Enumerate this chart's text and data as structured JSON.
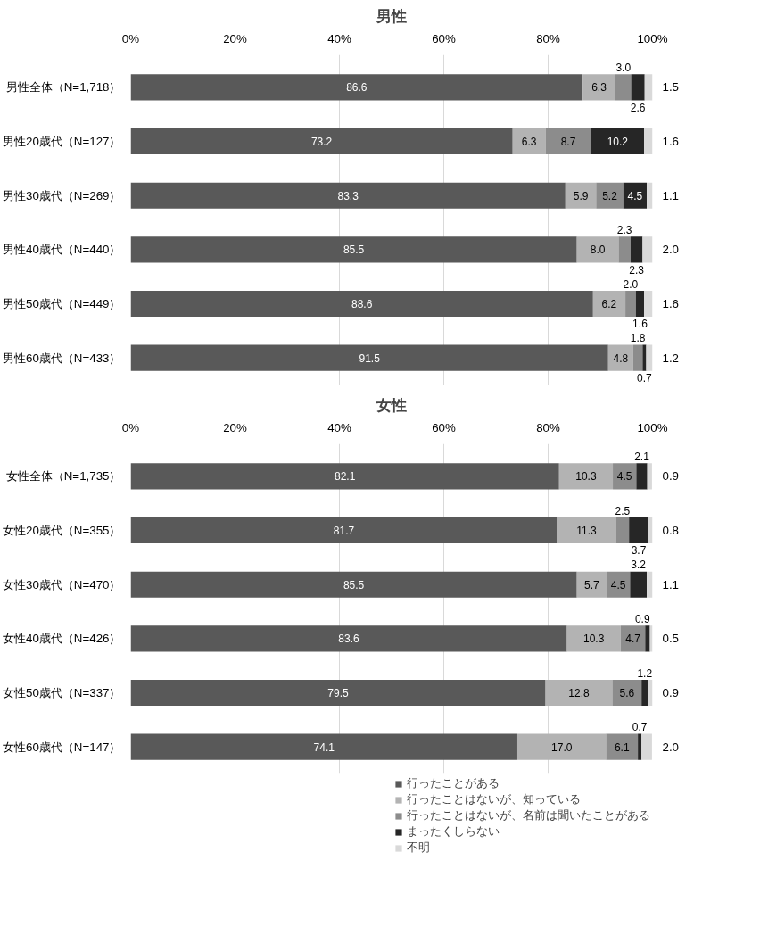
{
  "chart_data": [
    {
      "type": "bar",
      "orientation": "horizontal",
      "stacked": true,
      "title": "男性",
      "categories": [
        "男性全体（N=1,718）",
        "男性20歳代（N=127）",
        "男性30歳代（N=269）",
        "男性40歳代（N=440）",
        "男性50歳代（N=449）",
        "男性60歳代（N=433）"
      ],
      "series": [
        {
          "color": "#595959",
          "values": [
            86.6,
            73.2,
            83.3,
            85.5,
            88.6,
            91.5
          ],
          "value_labels": [
            "86.6",
            "73.2",
            "83.3",
            "85.5",
            "88.6",
            "91.5"
          ]
        },
        {
          "color": "#b3b3b3",
          "values": [
            6.3,
            6.3,
            5.9,
            8.0,
            6.2,
            4.8
          ],
          "value_labels": [
            "6.3",
            "6.3",
            "5.9",
            "8.0",
            "6.2",
            "4.8"
          ]
        },
        {
          "color": "#8c8c8c",
          "values": [
            3.0,
            8.7,
            5.2,
            2.3,
            2.0,
            1.8
          ],
          "value_labels": [
            "3.0",
            "8.7",
            "5.2",
            "2.3",
            "2.0",
            "1.8"
          ]
        },
        {
          "color": "#262626",
          "values": [
            2.6,
            10.2,
            4.5,
            2.3,
            1.6,
            0.7
          ],
          "value_labels": [
            "2.6",
            "10.2",
            "4.5",
            "2.3",
            "1.6",
            "0.7"
          ]
        },
        {
          "color": "#d9d9d9",
          "values": [
            1.5,
            1.6,
            1.1,
            2.0,
            1.6,
            1.2
          ],
          "value_labels": [
            "1.5",
            "1.6",
            "1.1",
            "2.0",
            "1.6",
            "1.2"
          ]
        }
      ],
      "xlim": [
        0,
        100
      ],
      "xticks": [
        {
          "value": 0,
          "label": "0%"
        },
        {
          "value": 20,
          "label": "20%"
        },
        {
          "value": 40,
          "label": "40%"
        },
        {
          "value": 60,
          "label": "60%"
        },
        {
          "value": 80,
          "label": "80%"
        },
        {
          "value": 100,
          "label": "100%"
        }
      ],
      "grid": "x"
    },
    {
      "type": "bar",
      "orientation": "horizontal",
      "stacked": true,
      "title": "女性",
      "categories": [
        "女性全体（N=1,735）",
        "女性20歳代（N=355）",
        "女性30歳代（N=470）",
        "女性40歳代（N=426）",
        "女性50歳代（N=337）",
        "女性60歳代（N=147）"
      ],
      "series": [
        {
          "name": "行ったことがある",
          "color": "#595959",
          "values": [
            82.1,
            81.7,
            85.5,
            83.6,
            79.5,
            74.1
          ],
          "value_labels": [
            "82.1",
            "81.7",
            "85.5",
            "83.6",
            "79.5",
            "74.1"
          ]
        },
        {
          "name": "行ったことはないが、知っている",
          "color": "#b3b3b3",
          "values": [
            10.3,
            11.3,
            5.7,
            10.3,
            12.8,
            17.0
          ],
          "value_labels": [
            "10.3",
            "11.3",
            "5.7",
            "10.3",
            "12.8",
            "17.0"
          ]
        },
        {
          "name": "行ったことはないが、名前は聞いたことがある",
          "color": "#8c8c8c",
          "values": [
            4.5,
            2.5,
            4.5,
            4.7,
            5.6,
            6.1
          ],
          "value_labels": [
            "4.5",
            "2.5",
            "4.5",
            "4.7",
            "5.6",
            "6.1"
          ]
        },
        {
          "name": "まったくしらない",
          "color": "#262626",
          "values": [
            2.1,
            3.7,
            3.2,
            0.9,
            1.2,
            0.7
          ],
          "value_labels": [
            "2.1",
            "3.7",
            "3.2",
            "0.9",
            "1.2",
            "0.7"
          ]
        },
        {
          "name": "不明",
          "color": "#d9d9d9",
          "values": [
            0.9,
            0.8,
            1.1,
            0.5,
            0.9,
            2.0
          ],
          "value_labels": [
            "0.9",
            "0.8",
            "1.1",
            "0.5",
            "0.9",
            "2.0"
          ]
        }
      ],
      "xlim": [
        0,
        100
      ],
      "xticks": [
        {
          "value": 0,
          "label": "0%"
        },
        {
          "value": 20,
          "label": "20%"
        },
        {
          "value": 40,
          "label": "40%"
        },
        {
          "value": 60,
          "label": "60%"
        },
        {
          "value": 80,
          "label": "80%"
        },
        {
          "value": 100,
          "label": "100%"
        }
      ],
      "grid": "x",
      "legend": "bottom"
    }
  ]
}
